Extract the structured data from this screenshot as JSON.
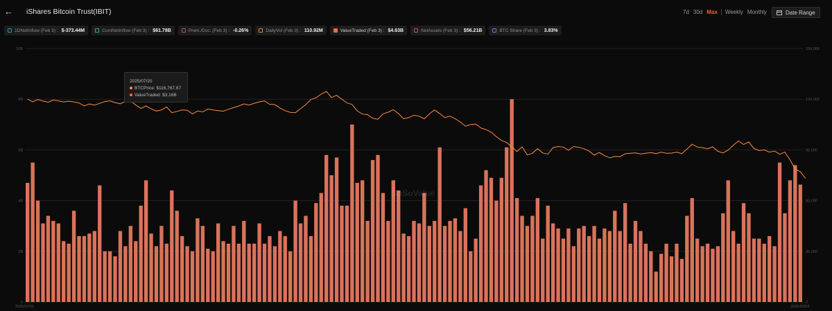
{
  "header": {
    "back_icon": "arrow-left-icon",
    "title": "iShares Bitcoin Trust(IBIT)"
  },
  "periods": [
    "7d",
    "30d",
    "Max",
    "Weekly",
    "Monthly"
  ],
  "active_period": "Max",
  "date_range_label": "Date Range",
  "metrics": [
    {
      "label": "1DNetInflow (Feb 3) :",
      "value": "$-373.44M",
      "color": "#3a8fb7",
      "checked": false
    },
    {
      "label": "CumNetInflow (Feb 3) :",
      "value": "$61.78B",
      "color": "#3aa6a6",
      "checked": false
    },
    {
      "label": "Prem./Dsc. (Feb 3) :",
      "value": "-0.26%",
      "color": "#c0506a",
      "checked": false
    },
    {
      "label": "DailyVol (Feb 3) :",
      "value": "110.92M",
      "color": "#d88a3a",
      "checked": false
    },
    {
      "label": "ValueTraded (Feb 3) :",
      "value": "$4.63B",
      "color": "#ff6a4c",
      "checked": true
    },
    {
      "label": "NetAssets (Feb 3) :",
      "value": "$56.21B",
      "color": "#c0506a",
      "checked": false
    },
    {
      "label": "BTC Share (Feb 3) :",
      "value": "3.83%",
      "color": "#9a6ad8",
      "checked": false
    }
  ],
  "tooltip": {
    "date": "2025/07/20",
    "btc_label": "BTCPrice: $116,767.67",
    "vt_label": "ValueTraded: $3.16B",
    "btc_color": "#ff8c42",
    "vt_color": "#ff6a4c"
  },
  "watermark": "SoSoValue",
  "chart_data": {
    "type": "bar+line",
    "x_start_label": "2025/07/11",
    "x_end_label": "2026/02/03",
    "y_left": {
      "ticks": [
        "10B",
        "8B",
        "6B",
        "4B",
        "2B",
        "0"
      ],
      "range": [
        0,
        10
      ]
    },
    "y_right": {
      "ticks": [
        "150,000",
        "120,000",
        "90,000",
        "60,000",
        "30,000",
        "0"
      ],
      "range": [
        0,
        150000
      ]
    },
    "bar_color": "#d9735b",
    "line_color": "#ff8c42",
    "series": [
      {
        "name": "ValueTraded",
        "unit": "B",
        "values": [
          4.7,
          5.5,
          4.0,
          3.1,
          3.4,
          3.2,
          3.1,
          2.4,
          2.3,
          3.6,
          2.6,
          2.6,
          2.7,
          2.8,
          4.6,
          2.0,
          2.0,
          1.8,
          2.8,
          2.2,
          3.0,
          2.4,
          3.8,
          4.8,
          2.7,
          2.2,
          3.0,
          2.3,
          4.4,
          3.6,
          2.6,
          2.2,
          2.0,
          3.3,
          3.0,
          2.1,
          2.0,
          3.1,
          2.4,
          2.3,
          3.0,
          2.3,
          3.2,
          2.3,
          2.3,
          3.1,
          2.3,
          2.6,
          2.2,
          2.8,
          2.6,
          2.0,
          4.0,
          3.1,
          3.4,
          2.6,
          3.9,
          4.3,
          5.8,
          5.0,
          5.7,
          3.8,
          3.8,
          7.0,
          4.7,
          4.8,
          3.2,
          5.6,
          5.8,
          4.3,
          3.2,
          4.8,
          4.4,
          2.7,
          2.6,
          3.2,
          3.1,
          4.3,
          3.0,
          3.2,
          6.1,
          3.0,
          3.2,
          3.3,
          2.8,
          3.7,
          2.0,
          2.5,
          4.6,
          5.2,
          4.9,
          4.0,
          4.9,
          6.1,
          8.0,
          4.1,
          3.4,
          3.0,
          3.4,
          4.1,
          2.5,
          3.8,
          3.1,
          2.9,
          2.5,
          2.9,
          2.2,
          2.9,
          3.0,
          2.6,
          3.0,
          2.5,
          2.9,
          2.8,
          3.6,
          2.8,
          3.9,
          2.3,
          3.2,
          2.8,
          2.3,
          2.0,
          1.2,
          1.9,
          2.3,
          1.8,
          2.3,
          1.7,
          3.4,
          4.1,
          2.5,
          2.2,
          2.3,
          2.1,
          2.2,
          3.5,
          4.8,
          2.8,
          2.3,
          3.9,
          3.5,
          2.5,
          2.5,
          2.3,
          2.6,
          2.2,
          5.5,
          3.5,
          4.8,
          5.4,
          4.63
        ]
      },
      {
        "name": "BTCPrice",
        "unit": "USD",
        "values": [
          120000,
          118500,
          119800,
          118900,
          118200,
          119500,
          119000,
          118400,
          118800,
          118300,
          117800,
          116000,
          117200,
          116500,
          117500,
          118600,
          119000,
          118000,
          117300,
          118700,
          119000,
          116500,
          114500,
          116000,
          114300,
          113000,
          113600,
          115400,
          112000,
          112800,
          113600,
          113500,
          111300,
          113000,
          112500,
          114200,
          113600,
          113200,
          112900,
          114000,
          115000,
          116000,
          117200,
          116500,
          117600,
          118400,
          119000,
          117000,
          116800,
          114800,
          113200,
          112200,
          112000,
          114400,
          116800,
          119800,
          120800,
          123000,
          124600,
          121000,
          122300,
          120000,
          117800,
          116900,
          113000,
          111200,
          110800,
          108700,
          108100,
          111300,
          112300,
          113800,
          111500,
          108400,
          109100,
          110500,
          109900,
          108400,
          111300,
          113600,
          111500,
          109100,
          110000,
          108500,
          106500,
          104000,
          105000,
          105300,
          103000,
          102000,
          100500,
          97800,
          95600,
          94400,
          91800,
          89000,
          91800,
          87000,
          88000,
          90700,
          88200,
          87500,
          91300,
          92000,
          91700,
          89800,
          92000,
          91500,
          90700,
          89300,
          86900,
          88500,
          86600,
          85300,
          86100,
          86000,
          87700,
          88000,
          88200,
          87600,
          88000,
          88400,
          87800,
          88700,
          88000,
          88100,
          88700,
          87800,
          90500,
          93400,
          91700,
          91300,
          90700,
          91800,
          89200,
          88200,
          89900,
          92800,
          95300,
          93200,
          94700,
          90800,
          89600,
          90000,
          88700,
          89300,
          87400,
          88700,
          84200,
          78600,
          77100,
          73200
        ]
      }
    ]
  }
}
